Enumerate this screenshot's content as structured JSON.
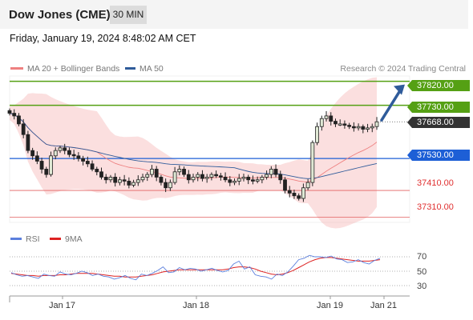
{
  "header": {
    "instrument": "Dow Jones (CME)",
    "timeframe": "30 MIN"
  },
  "timestamp": "Friday, January 19, 2024 8:48:02 AM CET",
  "legend": {
    "ma20": {
      "label": "MA 20 + Bollinger Bands",
      "color": "#ee8080"
    },
    "ma50": {
      "label": "MA 50",
      "color": "#2f5b9a"
    }
  },
  "credit": "Research © 2024 Trading Central",
  "levels": {
    "r2": {
      "label": "37820.00",
      "value": 37820,
      "color": "#55a014"
    },
    "r1": {
      "label": "37730.00",
      "value": 37730,
      "color": "#55a014"
    },
    "last": {
      "label": "37668.00",
      "value": 37668,
      "color": "#333333"
    },
    "pivot": {
      "label": "37530.00",
      "value": 37530,
      "color": "#1d5fd6"
    },
    "s1": {
      "label": "37410.00",
      "value": 37410,
      "color": "#e36060"
    },
    "s2": {
      "label": "37310.00",
      "value": 37310,
      "color": "#e36060"
    }
  },
  "rsi_legend": {
    "rsi": {
      "label": "RSI",
      "color": "#5b7fdd"
    },
    "ma9": {
      "label": "9MA",
      "color": "#dd2222"
    }
  },
  "rsi_ticks": [
    "70",
    "50",
    "30"
  ],
  "x_labels": [
    "Jan 17",
    "Jan 18",
    "Jan 19",
    "Jan 21"
  ],
  "chart_data": {
    "type": "candlestick",
    "price_range": [
      37290,
      37840
    ],
    "rsi_range": [
      20,
      80
    ],
    "x_labels": [
      "Jan 17",
      "Jan 18",
      "Jan 19",
      "Jan 21"
    ],
    "rsi_levels": [
      70,
      50,
      30
    ],
    "close_series": [
      37700,
      37690,
      37660,
      37620,
      37560,
      37540,
      37520,
      37490,
      37470,
      37540,
      37560,
      37570,
      37560,
      37545,
      37540,
      37530,
      37520,
      37510,
      37490,
      37480,
      37460,
      37450,
      37460,
      37440,
      37450,
      37445,
      37430,
      37440,
      37450,
      37460,
      37470,
      37490,
      37460,
      37440,
      37420,
      37440,
      37480,
      37490,
      37470,
      37450,
      37460,
      37470,
      37455,
      37460,
      37470,
      37465,
      37460,
      37450,
      37440,
      37445,
      37455,
      37460,
      37450,
      37445,
      37450,
      37460,
      37470,
      37490,
      37470,
      37450,
      37410,
      37400,
      37390,
      37380,
      37420,
      37440,
      37590,
      37650,
      37680,
      37690,
      37670,
      37660,
      37660,
      37655,
      37650,
      37645,
      37650,
      37640,
      37645,
      37650,
      37668
    ],
    "rsi_series": [
      48,
      45,
      43,
      44,
      42,
      40,
      46,
      44,
      43,
      49,
      46,
      45,
      47,
      50,
      48,
      44,
      46,
      43,
      42,
      39,
      41,
      44,
      40,
      38,
      46,
      44,
      47,
      51,
      56,
      48,
      49,
      55,
      52,
      54,
      53,
      50,
      52,
      54,
      51,
      49,
      51,
      60,
      64,
      53,
      56,
      45,
      43,
      42,
      39,
      46,
      44,
      49,
      57,
      66,
      68,
      72,
      70,
      70,
      69,
      71,
      67,
      66,
      62,
      63,
      66,
      62,
      60,
      65,
      68
    ],
    "rsi_ma9_series": [
      47,
      46,
      45,
      44,
      44,
      43,
      44,
      44,
      44,
      45,
      45,
      46,
      47,
      47,
      47,
      47,
      46,
      45,
      44,
      43,
      43,
      42,
      42,
      42,
      43,
      44,
      45,
      47,
      49,
      50,
      51,
      52,
      52,
      52,
      52,
      52,
      52,
      52,
      52,
      52,
      53,
      55,
      56,
      56,
      55,
      53,
      50,
      48,
      46,
      45,
      46,
      48,
      51,
      55,
      59,
      63,
      66,
      68,
      69,
      69,
      68,
      67,
      66,
      65,
      64,
      64,
      64,
      65,
      66
    ]
  }
}
